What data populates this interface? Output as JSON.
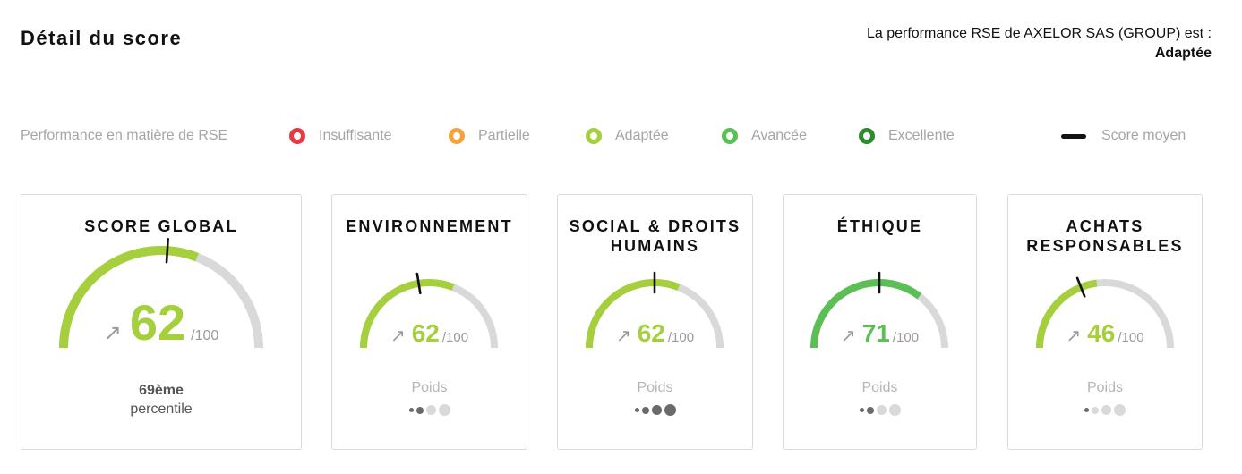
{
  "header": {
    "title": "Détail du score",
    "performance_text": "La performance RSE de AXELOR SAS (GROUP) est :",
    "performance_value": "Adaptée"
  },
  "legend": {
    "label": "Performance en matière de RSE",
    "levels": [
      {
        "label": "Insuffisante",
        "color": "#e63946"
      },
      {
        "label": "Partielle",
        "color": "#f4a23a"
      },
      {
        "label": "Adaptée",
        "color": "#a5cf3d"
      },
      {
        "label": "Avancée",
        "color": "#5cbf55"
      },
      {
        "label": "Excellente",
        "color": "#2e8b2e"
      }
    ],
    "average_label": "Score moyen"
  },
  "cards": [
    {
      "title": "SCORE GLOBAL",
      "score": "62",
      "max": "/100",
      "score_value": 62,
      "average_value": 52,
      "color": "#a5cf3d",
      "trend_icon": "arrow-up-right-icon",
      "percentile_rank": "69ème",
      "percentile_label": "percentile"
    },
    {
      "title": "ENVIRONNEMENT",
      "score": "62",
      "max": "/100",
      "score_value": 62,
      "average_value": 45,
      "color": "#a5cf3d",
      "trend_icon": "arrow-up-right-icon",
      "weight_label": "Poids",
      "weight_level": 2
    },
    {
      "title": "SOCIAL & DROITS HUMAINS",
      "score": "62",
      "max": "/100",
      "score_value": 62,
      "average_value": 50,
      "color": "#a5cf3d",
      "trend_icon": "arrow-up-right-icon",
      "weight_label": "Poids",
      "weight_level": 4
    },
    {
      "title": "ÉTHIQUE",
      "score": "71",
      "max": "/100",
      "score_value": 71,
      "average_value": 50,
      "color": "#5cbf55",
      "trend_icon": "arrow-up-right-icon",
      "weight_label": "Poids",
      "weight_level": 2
    },
    {
      "title": "ACHATS RESPONSABLES",
      "score": "46",
      "max": "/100",
      "score_value": 46,
      "average_value": 38,
      "color": "#a5cf3d",
      "trend_icon": "arrow-up-right-icon",
      "weight_label": "Poids",
      "weight_level": 1
    }
  ],
  "colors": {
    "gauge_track": "#d9d9d9",
    "average_marker": "#111111",
    "weight_dot_inactive": "#d9d9d9",
    "weight_dot_active": "#6a6a6a"
  }
}
